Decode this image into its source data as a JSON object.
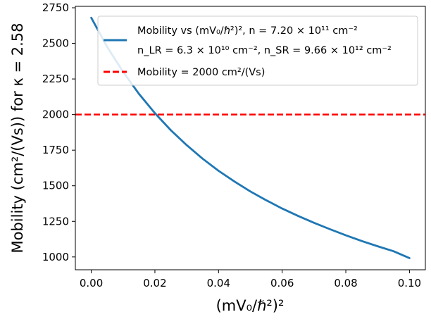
{
  "chart_data": {
    "type": "line",
    "title": "",
    "xlabel": "(mV₀/ℏ²)²",
    "ylabel": "Mobility (cm²/(Vs)) for  κ = 2.58",
    "xlim": [
      -0.005,
      0.105
    ],
    "ylim": [
      910,
      2760
    ],
    "xticks": [
      0.0,
      0.02,
      0.04,
      0.06,
      0.08,
      0.1
    ],
    "xtick_labels": [
      "0.00",
      "0.02",
      "0.04",
      "0.06",
      "0.08",
      "0.10"
    ],
    "yticks": [
      1000,
      1250,
      1500,
      1750,
      2000,
      2250,
      2500,
      2750
    ],
    "ytick_labels": [
      "1000",
      "1250",
      "1500",
      "1750",
      "2000",
      "2250",
      "2500",
      "2750"
    ],
    "grid": false,
    "legend_position": "top-right",
    "series": [
      {
        "name": "Mobility vs (mV₀/ℏ²)², n = 7.20 × 10¹¹ cm⁻²",
        "name_line2": "n_LR = 6.3 × 10¹⁰ cm⁻²,  n_SR = 9.66 × 10¹² cm⁻²",
        "style": "solid",
        "color": "#1f77b4",
        "x": [
          0.0,
          0.005,
          0.01,
          0.015,
          0.02,
          0.025,
          0.03,
          0.035,
          0.04,
          0.045,
          0.05,
          0.055,
          0.06,
          0.065,
          0.07,
          0.075,
          0.08,
          0.085,
          0.09,
          0.095,
          0.1
        ],
        "y": [
          2680,
          2475,
          2300,
          2145,
          2010,
          1890,
          1785,
          1690,
          1605,
          1530,
          1460,
          1398,
          1340,
          1288,
          1240,
          1195,
          1152,
          1112,
          1075,
          1040,
          992
        ]
      },
      {
        "name": "Mobility = 2000 cm²/(Vs)",
        "style": "dashed",
        "color": "#ff0000",
        "y_constant": 2000
      }
    ]
  }
}
